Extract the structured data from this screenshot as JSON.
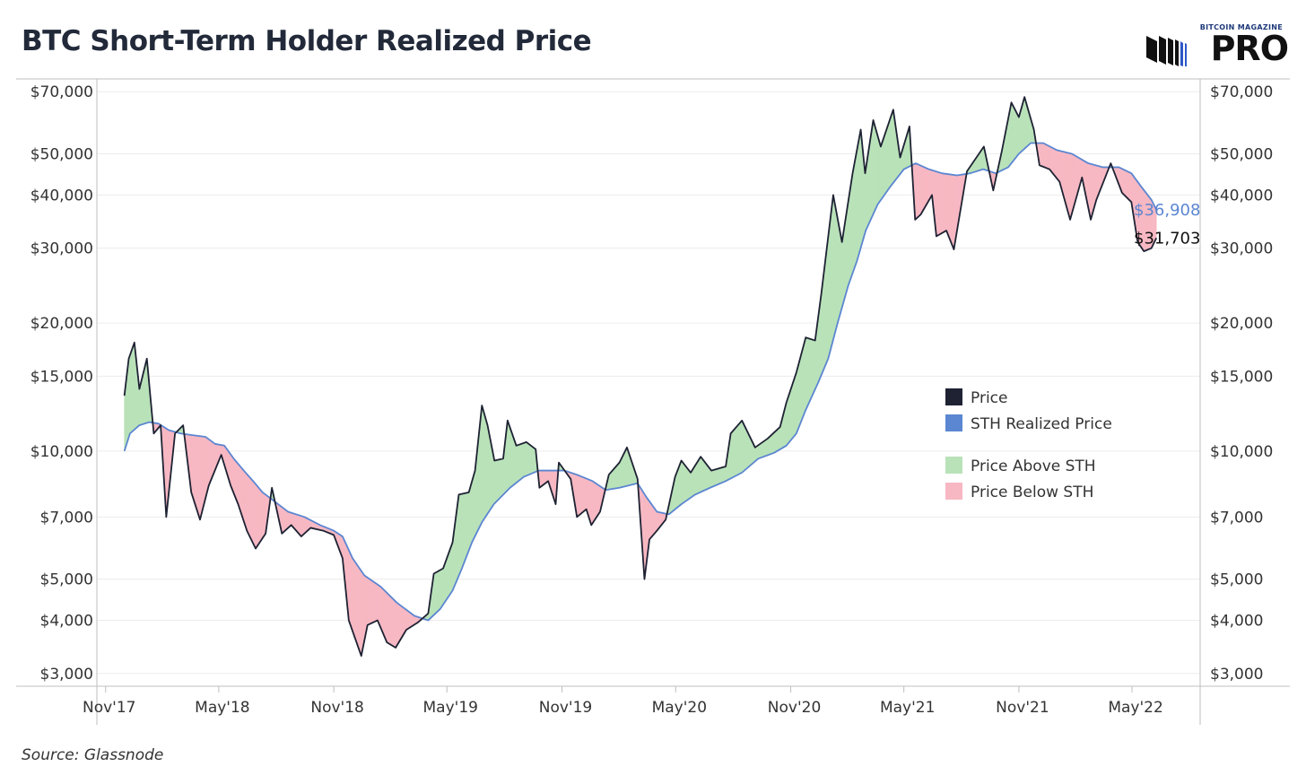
{
  "title": "BTC Short-Term Holder Realized Price",
  "logo": {
    "top_text": "BITCOIN MAGAZINE",
    "main_text": "PRO",
    "icon": "bitcoin-magazine-logo-icon"
  },
  "source": "Source: Glassnode",
  "colors": {
    "price": "#1e2233",
    "sth": "#5b86d1",
    "above": "#b9e2b9",
    "below": "#f7b8c3",
    "grid": "#ececec",
    "axis": "#bfbfbf"
  },
  "chart_data": {
    "type": "area",
    "title": "BTC Short-Term Holder Realized Price",
    "y_scale": "log",
    "ylim": [
      2800,
      75000
    ],
    "y_ticks": [
      3000,
      4000,
      5000,
      7000,
      10000,
      15000,
      20000,
      30000,
      40000,
      50000,
      70000
    ],
    "y_tick_labels": [
      "$3,000",
      "$4,000",
      "$5,000",
      "$7,000",
      "$10,000",
      "$15,000",
      "$20,000",
      "$30,000",
      "$40,000",
      "$50,000",
      "$70,000"
    ],
    "x_ticks": [
      "2017-11-01",
      "2018-05-01",
      "2018-11-01",
      "2019-05-01",
      "2019-11-01",
      "2020-05-01",
      "2020-11-01",
      "2021-05-01",
      "2021-11-01",
      "2022-05-01"
    ],
    "x_tick_labels": [
      "Nov'17",
      "May'18",
      "Nov'18",
      "May'19",
      "Nov'19",
      "May'20",
      "Nov'20",
      "May'21",
      "Nov'21",
      "May'22"
    ],
    "grid": true,
    "legend": {
      "placement": "center-right",
      "items": [
        {
          "label": "Price",
          "color": "#1e2233"
        },
        {
          "label": "STH Realized Price",
          "color": "#5b86d1"
        },
        {
          "label": "Price Above STH",
          "color": "#b9e2b9"
        },
        {
          "label": "Price Below STH",
          "color": "#f7b8c3"
        }
      ]
    },
    "end_labels": {
      "sth": "$36,908",
      "price": "$31,703"
    },
    "series": [
      {
        "name": "Price",
        "points": [
          [
            "2017-12-01",
            13500
          ],
          [
            "2017-12-08",
            16500
          ],
          [
            "2017-12-17",
            18000
          ],
          [
            "2017-12-25",
            14000
          ],
          [
            "2018-01-06",
            16500
          ],
          [
            "2018-01-17",
            11000
          ],
          [
            "2018-01-28",
            11500
          ],
          [
            "2018-02-06",
            7000
          ],
          [
            "2018-02-20",
            11000
          ],
          [
            "2018-03-05",
            11500
          ],
          [
            "2018-03-18",
            8000
          ],
          [
            "2018-04-01",
            6900
          ],
          [
            "2018-04-15",
            8300
          ],
          [
            "2018-05-05",
            9800
          ],
          [
            "2018-05-20",
            8300
          ],
          [
            "2018-06-01",
            7500
          ],
          [
            "2018-06-15",
            6500
          ],
          [
            "2018-06-29",
            5900
          ],
          [
            "2018-07-15",
            6400
          ],
          [
            "2018-07-25",
            8200
          ],
          [
            "2018-08-10",
            6400
          ],
          [
            "2018-08-25",
            6700
          ],
          [
            "2018-09-10",
            6300
          ],
          [
            "2018-09-25",
            6600
          ],
          [
            "2018-10-15",
            6500
          ],
          [
            "2018-11-01",
            6350
          ],
          [
            "2018-11-15",
            5600
          ],
          [
            "2018-11-25",
            4000
          ],
          [
            "2018-12-15",
            3300
          ],
          [
            "2018-12-25",
            3900
          ],
          [
            "2019-01-10",
            4000
          ],
          [
            "2019-01-25",
            3550
          ],
          [
            "2019-02-08",
            3450
          ],
          [
            "2019-02-25",
            3800
          ],
          [
            "2019-03-15",
            3950
          ],
          [
            "2019-04-01",
            4150
          ],
          [
            "2019-04-10",
            5150
          ],
          [
            "2019-04-25",
            5300
          ],
          [
            "2019-05-10",
            6100
          ],
          [
            "2019-05-20",
            7900
          ],
          [
            "2019-06-05",
            8000
          ],
          [
            "2019-06-15",
            9000
          ],
          [
            "2019-06-26",
            12800
          ],
          [
            "2019-07-05",
            11500
          ],
          [
            "2019-07-16",
            9500
          ],
          [
            "2019-07-30",
            9600
          ],
          [
            "2019-08-06",
            11800
          ],
          [
            "2019-08-20",
            10300
          ],
          [
            "2019-09-05",
            10500
          ],
          [
            "2019-09-20",
            10100
          ],
          [
            "2019-09-26",
            8200
          ],
          [
            "2019-10-10",
            8500
          ],
          [
            "2019-10-22",
            7500
          ],
          [
            "2019-10-27",
            9400
          ],
          [
            "2019-11-15",
            8600
          ],
          [
            "2019-11-25",
            7000
          ],
          [
            "2019-12-10",
            7300
          ],
          [
            "2019-12-18",
            6700
          ],
          [
            "2020-01-01",
            7200
          ],
          [
            "2020-01-15",
            8800
          ],
          [
            "2020-02-01",
            9400
          ],
          [
            "2020-02-13",
            10200
          ],
          [
            "2020-03-01",
            8600
          ],
          [
            "2020-03-12",
            5000
          ],
          [
            "2020-03-20",
            6200
          ],
          [
            "2020-04-01",
            6500
          ],
          [
            "2020-04-15",
            6900
          ],
          [
            "2020-04-30",
            8700
          ],
          [
            "2020-05-10",
            9500
          ],
          [
            "2020-05-25",
            8900
          ],
          [
            "2020-06-10",
            9700
          ],
          [
            "2020-06-27",
            9000
          ],
          [
            "2020-07-20",
            9200
          ],
          [
            "2020-07-28",
            11000
          ],
          [
            "2020-08-15",
            11800
          ],
          [
            "2020-09-05",
            10200
          ],
          [
            "2020-09-25",
            10700
          ],
          [
            "2020-10-15",
            11400
          ],
          [
            "2020-10-25",
            13000
          ],
          [
            "2020-11-10",
            15300
          ],
          [
            "2020-11-25",
            18500
          ],
          [
            "2020-12-10",
            18200
          ],
          [
            "2020-12-20",
            23500
          ],
          [
            "2021-01-08",
            40000
          ],
          [
            "2021-01-22",
            31000
          ],
          [
            "2021-02-08",
            45000
          ],
          [
            "2021-02-21",
            57000
          ],
          [
            "2021-02-28",
            45000
          ],
          [
            "2021-03-13",
            60000
          ],
          [
            "2021-03-25",
            52000
          ],
          [
            "2021-04-14",
            63500
          ],
          [
            "2021-04-25",
            49000
          ],
          [
            "2021-05-10",
            58000
          ],
          [
            "2021-05-19",
            35000
          ],
          [
            "2021-05-28",
            36000
          ],
          [
            "2021-06-15",
            40000
          ],
          [
            "2021-06-22",
            32000
          ],
          [
            "2021-07-08",
            33000
          ],
          [
            "2021-07-20",
            29800
          ],
          [
            "2021-08-10",
            45500
          ],
          [
            "2021-08-25",
            49000
          ],
          [
            "2021-09-06",
            52000
          ],
          [
            "2021-09-21",
            41000
          ],
          [
            "2021-10-05",
            51000
          ],
          [
            "2021-10-20",
            66000
          ],
          [
            "2021-11-01",
            61000
          ],
          [
            "2021-11-10",
            68000
          ],
          [
            "2021-11-25",
            57000
          ],
          [
            "2021-12-04",
            47000
          ],
          [
            "2021-12-20",
            46000
          ],
          [
            "2022-01-05",
            43000
          ],
          [
            "2022-01-22",
            35000
          ],
          [
            "2022-02-10",
            44000
          ],
          [
            "2022-02-24",
            35000
          ],
          [
            "2022-03-05",
            39000
          ],
          [
            "2022-03-28",
            47500
          ],
          [
            "2022-04-15",
            40500
          ],
          [
            "2022-04-30",
            38500
          ],
          [
            "2022-05-10",
            31000
          ],
          [
            "2022-05-20",
            29500
          ],
          [
            "2022-06-01",
            30000
          ],
          [
            "2022-06-09",
            31703
          ]
        ]
      },
      {
        "name": "STH Realized Price",
        "points": [
          [
            "2017-12-01",
            10000
          ],
          [
            "2017-12-10",
            11000
          ],
          [
            "2017-12-25",
            11500
          ],
          [
            "2018-01-10",
            11700
          ],
          [
            "2018-01-25",
            11600
          ],
          [
            "2018-02-10",
            11200
          ],
          [
            "2018-03-01",
            11000
          ],
          [
            "2018-03-20",
            10900
          ],
          [
            "2018-04-10",
            10800
          ],
          [
            "2018-04-25",
            10400
          ],
          [
            "2018-05-10",
            10300
          ],
          [
            "2018-05-25",
            9600
          ],
          [
            "2018-06-10",
            9000
          ],
          [
            "2018-06-25",
            8500
          ],
          [
            "2018-07-10",
            8000
          ],
          [
            "2018-07-30",
            7600
          ],
          [
            "2018-08-20",
            7200
          ],
          [
            "2018-09-15",
            7000
          ],
          [
            "2018-10-10",
            6700
          ],
          [
            "2018-11-01",
            6500
          ],
          [
            "2018-11-15",
            6300
          ],
          [
            "2018-12-01",
            5600
          ],
          [
            "2018-12-20",
            5100
          ],
          [
            "2019-01-15",
            4800
          ],
          [
            "2019-02-10",
            4400
          ],
          [
            "2019-03-10",
            4100
          ],
          [
            "2019-04-01",
            4000
          ],
          [
            "2019-04-20",
            4250
          ],
          [
            "2019-05-10",
            4700
          ],
          [
            "2019-05-25",
            5300
          ],
          [
            "2019-06-10",
            6100
          ],
          [
            "2019-06-26",
            6800
          ],
          [
            "2019-07-15",
            7500
          ],
          [
            "2019-08-10",
            8200
          ],
          [
            "2019-09-01",
            8700
          ],
          [
            "2019-09-25",
            9000
          ],
          [
            "2019-10-15",
            9000
          ],
          [
            "2019-11-05",
            9000
          ],
          [
            "2019-11-25",
            8800
          ],
          [
            "2019-12-20",
            8500
          ],
          [
            "2020-01-10",
            8100
          ],
          [
            "2020-02-01",
            8200
          ],
          [
            "2020-03-01",
            8400
          ],
          [
            "2020-03-15",
            7800
          ],
          [
            "2020-04-01",
            7200
          ],
          [
            "2020-04-20",
            7100
          ],
          [
            "2020-05-10",
            7500
          ],
          [
            "2020-06-01",
            7900
          ],
          [
            "2020-06-25",
            8200
          ],
          [
            "2020-07-20",
            8500
          ],
          [
            "2020-08-15",
            8900
          ],
          [
            "2020-09-10",
            9600
          ],
          [
            "2020-10-05",
            9900
          ],
          [
            "2020-10-25",
            10300
          ],
          [
            "2020-11-10",
            11000
          ],
          [
            "2020-11-25",
            12500
          ],
          [
            "2020-12-15",
            14500
          ],
          [
            "2020-12-31",
            16500
          ],
          [
            "2021-01-15",
            20000
          ],
          [
            "2021-02-01",
            24500
          ],
          [
            "2021-02-15",
            28000
          ],
          [
            "2021-03-01",
            33000
          ],
          [
            "2021-03-20",
            38000
          ],
          [
            "2021-04-10",
            42000
          ],
          [
            "2021-05-01",
            46000
          ],
          [
            "2021-05-20",
            47500
          ],
          [
            "2021-06-10",
            46000
          ],
          [
            "2021-07-01",
            45000
          ],
          [
            "2021-07-25",
            44500
          ],
          [
            "2021-08-15",
            45000
          ],
          [
            "2021-09-05",
            46000
          ],
          [
            "2021-09-25",
            45000
          ],
          [
            "2021-10-15",
            46500
          ],
          [
            "2021-11-01",
            50000
          ],
          [
            "2021-11-20",
            53000
          ],
          [
            "2021-12-10",
            53000
          ],
          [
            "2022-01-01",
            51000
          ],
          [
            "2022-01-25",
            50000
          ],
          [
            "2022-02-20",
            47500
          ],
          [
            "2022-03-15",
            46500
          ],
          [
            "2022-04-10",
            46500
          ],
          [
            "2022-04-30",
            45000
          ],
          [
            "2022-05-15",
            42000
          ],
          [
            "2022-06-01",
            39000
          ],
          [
            "2022-06-09",
            36908
          ]
        ]
      }
    ]
  }
}
